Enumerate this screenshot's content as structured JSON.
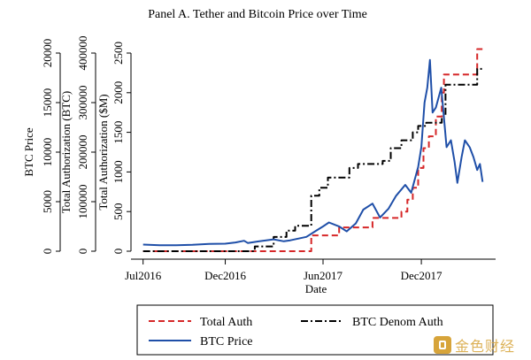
{
  "chart_data": {
    "type": "line",
    "title": "Panel A. Tether and Bitcoin Price over Time",
    "xlabel": "Date",
    "x_ticks": [
      "Jul2016",
      "Dec2016",
      "Jun2017",
      "Dec2017"
    ],
    "x_tick_dates": [
      "2016-07-01",
      "2016-12-01",
      "2017-06-01",
      "2017-12-01"
    ],
    "x_range": [
      "2016-06-20",
      "2018-04-10"
    ],
    "y_axes": [
      {
        "label": "BTC Price",
        "ticks": [
          "0",
          "5000",
          "10000",
          "15000",
          "20000"
        ],
        "range": [
          0,
          20000
        ]
      },
      {
        "label": "Total Authorization (BTC)",
        "ticks": [
          "0",
          "100000",
          "200000",
          "300000",
          "400000"
        ],
        "range": [
          0,
          400000
        ]
      },
      {
        "label": "Total Authorization ($M)",
        "ticks": [
          "0",
          "500",
          "1000",
          "1500",
          "2000",
          "2500"
        ],
        "range": [
          0,
          2500
        ]
      }
    ],
    "legend_position": "bottom",
    "series": [
      {
        "name": "Total Auth",
        "color": "#d62728",
        "style": "dashed",
        "axis": "Total Authorization ($M)",
        "points": [
          [
            "2016-07-01",
            0
          ],
          [
            "2017-05-10",
            0
          ],
          [
            "2017-05-10",
            200
          ],
          [
            "2017-07-01",
            200
          ],
          [
            "2017-07-01",
            300
          ],
          [
            "2017-09-01",
            300
          ],
          [
            "2017-09-01",
            420
          ],
          [
            "2017-10-25",
            420
          ],
          [
            "2017-10-25",
            500
          ],
          [
            "2017-11-05",
            500
          ],
          [
            "2017-11-05",
            650
          ],
          [
            "2017-11-15",
            650
          ],
          [
            "2017-11-15",
            800
          ],
          [
            "2017-11-25",
            800
          ],
          [
            "2017-11-25",
            1050
          ],
          [
            "2017-12-05",
            1050
          ],
          [
            "2017-12-05",
            1300
          ],
          [
            "2017-12-15",
            1300
          ],
          [
            "2017-12-15",
            1450
          ],
          [
            "2017-12-28",
            1450
          ],
          [
            "2017-12-28",
            1700
          ],
          [
            "2018-01-08",
            1700
          ],
          [
            "2018-01-08",
            2000
          ],
          [
            "2018-01-12",
            2000
          ],
          [
            "2018-01-12",
            2230
          ],
          [
            "2018-03-15",
            2230
          ],
          [
            "2018-03-15",
            2550
          ],
          [
            "2018-03-25",
            2550
          ]
        ]
      },
      {
        "name": "BTC Denom Auth",
        "color": "#000000",
        "style": "dashdot",
        "axis": "Total Authorization ($M)",
        "points": [
          [
            "2016-07-01",
            0
          ],
          [
            "2017-01-25",
            0
          ],
          [
            "2017-01-25",
            60
          ],
          [
            "2017-03-01",
            60
          ],
          [
            "2017-03-01",
            180
          ],
          [
            "2017-03-25",
            180
          ],
          [
            "2017-03-25",
            260
          ],
          [
            "2017-04-10",
            260
          ],
          [
            "2017-04-10",
            320
          ],
          [
            "2017-05-10",
            320
          ],
          [
            "2017-05-10",
            700
          ],
          [
            "2017-05-25",
            700
          ],
          [
            "2017-05-25",
            800
          ],
          [
            "2017-06-10",
            800
          ],
          [
            "2017-06-10",
            930
          ],
          [
            "2017-07-20",
            930
          ],
          [
            "2017-07-20",
            1050
          ],
          [
            "2017-08-05",
            1050
          ],
          [
            "2017-08-05",
            1100
          ],
          [
            "2017-09-20",
            1100
          ],
          [
            "2017-09-20",
            1140
          ],
          [
            "2017-10-05",
            1140
          ],
          [
            "2017-10-05",
            1300
          ],
          [
            "2017-10-25",
            1300
          ],
          [
            "2017-10-25",
            1400
          ],
          [
            "2017-11-15",
            1400
          ],
          [
            "2017-11-15",
            1500
          ],
          [
            "2017-11-25",
            1500
          ],
          [
            "2017-11-25",
            1580
          ],
          [
            "2017-12-10",
            1580
          ],
          [
            "2017-12-10",
            1620
          ],
          [
            "2018-01-08",
            1620
          ],
          [
            "2018-01-08",
            1700
          ],
          [
            "2018-01-15",
            1700
          ],
          [
            "2018-01-15",
            2100
          ],
          [
            "2018-03-15",
            2100
          ],
          [
            "2018-03-15",
            2300
          ],
          [
            "2018-03-25",
            2300
          ]
        ]
      },
      {
        "name": "BTC Price",
        "color": "#1f4fa8",
        "style": "solid",
        "axis": "BTC Price",
        "points": [
          [
            "2016-07-01",
            670
          ],
          [
            "2016-08-01",
            600
          ],
          [
            "2016-09-01",
            600
          ],
          [
            "2016-10-01",
            640
          ],
          [
            "2016-11-01",
            730
          ],
          [
            "2016-12-01",
            760
          ],
          [
            "2016-12-20",
            880
          ],
          [
            "2017-01-05",
            1050
          ],
          [
            "2017-01-12",
            830
          ],
          [
            "2017-02-01",
            990
          ],
          [
            "2017-03-01",
            1200
          ],
          [
            "2017-03-20",
            1000
          ],
          [
            "2017-04-01",
            1100
          ],
          [
            "2017-05-01",
            1450
          ],
          [
            "2017-05-20",
            2100
          ],
          [
            "2017-06-01",
            2500
          ],
          [
            "2017-06-12",
            2900
          ],
          [
            "2017-07-01",
            2500
          ],
          [
            "2017-07-15",
            2000
          ],
          [
            "2017-08-01",
            2800
          ],
          [
            "2017-08-15",
            4200
          ],
          [
            "2017-09-01",
            4800
          ],
          [
            "2017-09-15",
            3400
          ],
          [
            "2017-10-01",
            4300
          ],
          [
            "2017-10-15",
            5600
          ],
          [
            "2017-11-01",
            6700
          ],
          [
            "2017-11-12",
            5900
          ],
          [
            "2017-11-25",
            8500
          ],
          [
            "2017-12-01",
            10500
          ],
          [
            "2017-12-07",
            15000
          ],
          [
            "2017-12-12",
            16500
          ],
          [
            "2017-12-17",
            19300
          ],
          [
            "2017-12-22",
            14000
          ],
          [
            "2017-12-28",
            14500
          ],
          [
            "2018-01-07",
            16500
          ],
          [
            "2018-01-12",
            13500
          ],
          [
            "2018-01-17",
            10500
          ],
          [
            "2018-01-25",
            11200
          ],
          [
            "2018-02-01",
            9000
          ],
          [
            "2018-02-06",
            6900
          ],
          [
            "2018-02-14",
            9500
          ],
          [
            "2018-02-20",
            11200
          ],
          [
            "2018-03-01",
            10500
          ],
          [
            "2018-03-08",
            9500
          ],
          [
            "2018-03-15",
            8200
          ],
          [
            "2018-03-20",
            8800
          ],
          [
            "2018-03-25",
            7000
          ]
        ]
      }
    ]
  },
  "watermark": {
    "text": "金色财经"
  }
}
